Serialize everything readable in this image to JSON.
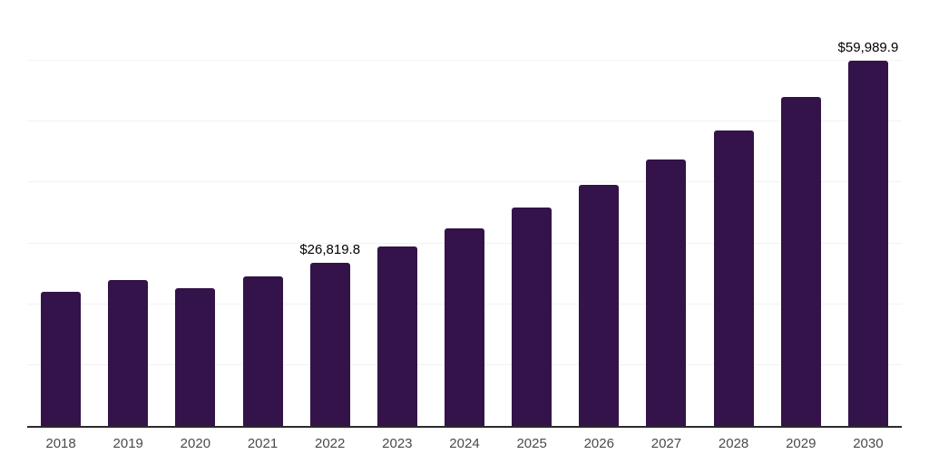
{
  "chart": {
    "background_color": "#ffffff",
    "bar_color": "#331349",
    "gridline_color": "#f2f2f2",
    "axis_color": "#2b2b2b",
    "tick_label_color": "#4a4a4a",
    "data_label_color": "#000000"
  },
  "chart_data": {
    "type": "bar",
    "title": "",
    "xlabel": "",
    "ylabel": "",
    "categories": [
      "2018",
      "2019",
      "2020",
      "2021",
      "2022",
      "2023",
      "2024",
      "2025",
      "2026",
      "2027",
      "2028",
      "2029",
      "2030"
    ],
    "values": [
      22000,
      24000,
      22700,
      24650,
      26819.8,
      29500,
      32470,
      35930,
      39650,
      43850,
      48560,
      54000,
      59989.9
    ],
    "data_labels": [
      "",
      "",
      "",
      "",
      "$26,819.8",
      "",
      "",
      "",
      "",
      "",
      "",
      "",
      "$59,989.9"
    ],
    "ylim": [
      0,
      70000
    ],
    "gridline_step": 10000,
    "grid": "horizontal",
    "legend": "none",
    "y_axis_ticks_visible": false
  }
}
